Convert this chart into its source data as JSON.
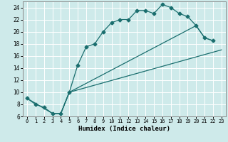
{
  "title": "",
  "xlabel": "Humidex (Indice chaleur)",
  "bg_color": "#ceeaea",
  "grid_color": "#ffffff",
  "line_color": "#1a6e6e",
  "xlim": [
    -0.5,
    23.5
  ],
  "ylim": [
    6,
    25
  ],
  "xticks": [
    0,
    1,
    2,
    3,
    4,
    5,
    6,
    7,
    8,
    9,
    10,
    11,
    12,
    13,
    14,
    15,
    16,
    17,
    18,
    19,
    20,
    21,
    22,
    23
  ],
  "yticks": [
    6,
    8,
    10,
    12,
    14,
    16,
    18,
    20,
    22,
    24
  ],
  "line1_x": [
    0,
    1,
    2,
    3,
    4,
    5,
    6,
    7,
    8,
    9,
    10,
    11,
    12,
    13,
    14,
    15,
    16,
    17,
    18,
    19,
    20,
    21,
    22
  ],
  "line1_y": [
    9,
    8,
    7.5,
    6.5,
    6.5,
    10,
    14.5,
    17.5,
    18,
    20,
    21.5,
    22,
    22,
    23.5,
    23.5,
    23,
    24.5,
    24,
    23,
    22.5,
    21,
    19,
    18.5
  ],
  "line2_x": [
    0,
    3,
    4,
    5,
    23
  ],
  "line2_y": [
    9,
    6.5,
    6.5,
    10,
    17
  ],
  "line3_x": [
    3,
    4,
    5,
    20,
    21,
    22
  ],
  "line3_y": [
    6.5,
    6.5,
    10,
    21,
    19,
    18.5
  ]
}
